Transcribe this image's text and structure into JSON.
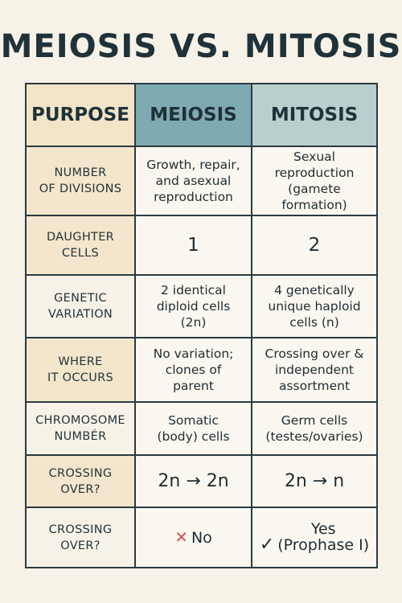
{
  "title": "MEIOSIS VS. MITOSIS",
  "colors": {
    "background": "#f7f2e8",
    "purpose_header": "#f2e4c6",
    "meiosis_header": "#7fa9b3",
    "mitosis_header": "#b8cfce",
    "label_cream": "#f3e6cc",
    "x_mark": "#d9534f"
  },
  "table": {
    "headers": [
      "PURPOSE",
      "MEIOSIS",
      "MITOSIS"
    ],
    "rows": [
      {
        "label": "NUMBER\nOF DIVISIONS",
        "meiosis": "Growth, repair,\nand asexual\nreproduction",
        "mitosis": "Sexual\nreproduction\n(gamete formation)"
      },
      {
        "label": "DAUGHTER\nCELLS",
        "meiosis": "1",
        "mitosis": "2"
      },
      {
        "label": "GENETIC\nVARIATION",
        "meiosis": "2 identical\ndiploid cells\n(2n)",
        "mitosis": "4 genetically\nunique haploid\ncells (n)"
      },
      {
        "label": "WHERE\nIT OCCURS",
        "meiosis": "No variation;\nclones of\nparent",
        "mitosis": "Crossing over &\nindependent\nassortment"
      },
      {
        "label": "CHROMOSOME\nNUMBÉR",
        "meiosis": "Somatic\n(body) cells",
        "mitosis": "Germ cells\n(testes/ovaries)"
      },
      {
        "label": "CROSSING\nOVER?",
        "meiosis": "2n → 2n",
        "mitosis": "2n → n"
      },
      {
        "label": "CROSSING\nOVER?",
        "meiosis": "No",
        "meiosis_icon": "x-mark-icon",
        "mitosis": "Yes\n(Prophase I)",
        "mitosis_icon": "check-mark-icon"
      }
    ]
  }
}
